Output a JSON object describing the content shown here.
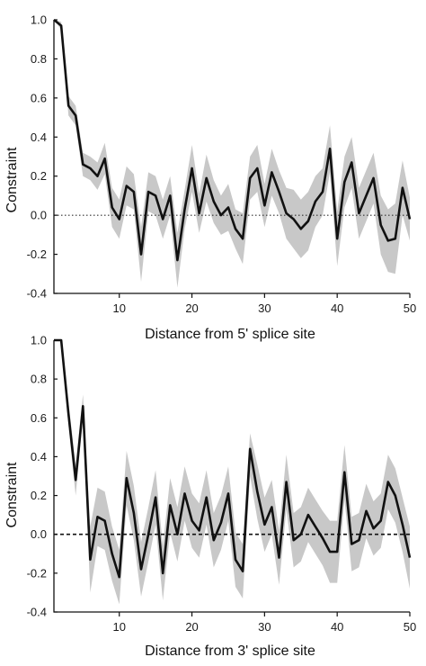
{
  "chart_data": [
    {
      "type": "line",
      "title": "",
      "xlabel": "Distance from 5' splice site",
      "ylabel": "Constraint",
      "xlim": [
        1,
        50
      ],
      "ylim": [
        -0.4,
        1.0
      ],
      "xticks": [
        10,
        20,
        30,
        40,
        50
      ],
      "yticks": [
        -0.4,
        -0.2,
        0.0,
        0.2,
        0.4,
        0.6,
        0.8,
        1.0
      ],
      "ytick_labels": [
        "-0.4",
        "-0.2",
        "0.0",
        "0.2",
        "0.4",
        "0.6",
        "0.8",
        "1.0"
      ],
      "reference_line": {
        "y": 0.0,
        "style": "dotted"
      },
      "grid": false,
      "series": [
        {
          "x": [
            1,
            2,
            3,
            4,
            5,
            6,
            7,
            8,
            9,
            10,
            11,
            12,
            13,
            14,
            15,
            16,
            17,
            18,
            19,
            20,
            21,
            22,
            23,
            24,
            25,
            26,
            27,
            28,
            29,
            30,
            31,
            32,
            33,
            34,
            35,
            36,
            37,
            38,
            39,
            40,
            41,
            42,
            43,
            44,
            45,
            46,
            47,
            48,
            49,
            50
          ],
          "values": [
            1.0,
            0.97,
            0.56,
            0.51,
            0.26,
            0.24,
            0.2,
            0.29,
            0.04,
            -0.02,
            0.15,
            0.12,
            -0.2,
            0.12,
            0.1,
            -0.02,
            0.1,
            -0.23,
            0.03,
            0.24,
            0.01,
            0.19,
            0.07,
            0.0,
            0.04,
            -0.07,
            -0.12,
            0.19,
            0.24,
            0.05,
            0.22,
            0.12,
            0.01,
            -0.02,
            -0.07,
            -0.03,
            0.07,
            0.12,
            0.34,
            -0.12,
            0.17,
            0.27,
            0.01,
            0.1,
            0.19,
            -0.05,
            -0.13,
            -0.12,
            0.14,
            -0.02
          ],
          "lower": [
            1.0,
            0.95,
            0.51,
            0.46,
            0.2,
            0.18,
            0.13,
            0.21,
            -0.06,
            -0.12,
            0.05,
            0.03,
            -0.34,
            0.02,
            0.0,
            -0.12,
            0.0,
            -0.37,
            -0.07,
            0.12,
            -0.09,
            0.07,
            -0.04,
            -0.1,
            -0.08,
            -0.17,
            -0.25,
            0.08,
            0.12,
            -0.06,
            0.1,
            0.01,
            -0.12,
            -0.17,
            -0.22,
            -0.18,
            -0.06,
            0.0,
            0.22,
            -0.26,
            0.04,
            0.14,
            -0.12,
            -0.03,
            0.06,
            -0.2,
            -0.29,
            -0.3,
            0.0,
            -0.13
          ],
          "upper": [
            1.0,
            0.99,
            0.61,
            0.56,
            0.32,
            0.3,
            0.27,
            0.37,
            0.14,
            0.08,
            0.25,
            0.21,
            -0.06,
            0.22,
            0.2,
            0.08,
            0.2,
            -0.09,
            0.13,
            0.36,
            0.11,
            0.31,
            0.18,
            0.1,
            0.16,
            0.03,
            0.01,
            0.3,
            0.36,
            0.16,
            0.34,
            0.23,
            0.14,
            0.13,
            0.08,
            0.12,
            0.2,
            0.24,
            0.46,
            0.02,
            0.3,
            0.4,
            0.14,
            0.23,
            0.32,
            0.1,
            0.03,
            0.06,
            0.28,
            0.09
          ]
        }
      ],
      "colors": {
        "line": "#111111",
        "band": "#c8c8c8",
        "reference": "#333333"
      }
    },
    {
      "type": "line",
      "title": "",
      "xlabel": "Distance from 3' splice site",
      "ylabel": "Constraint",
      "xlim": [
        1,
        50
      ],
      "ylim": [
        -0.4,
        1.0
      ],
      "xticks": [
        10,
        20,
        30,
        40,
        50
      ],
      "yticks": [
        -0.4,
        -0.2,
        0.0,
        0.2,
        0.4,
        0.6,
        0.8,
        1.0
      ],
      "ytick_labels": [
        "-0.4",
        "-0.2",
        "0.0",
        "0.2",
        "0.4",
        "0.6",
        "0.8",
        "1.0"
      ],
      "reference_line": {
        "y": 0.0,
        "style": "dashed"
      },
      "grid": false,
      "series": [
        {
          "x": [
            1,
            2,
            3,
            4,
            5,
            6,
            7,
            8,
            9,
            10,
            11,
            12,
            13,
            14,
            15,
            16,
            17,
            18,
            19,
            20,
            21,
            22,
            23,
            24,
            25,
            26,
            27,
            28,
            29,
            30,
            31,
            32,
            33,
            34,
            35,
            36,
            37,
            38,
            39,
            40,
            41,
            42,
            43,
            44,
            45,
            46,
            47,
            48,
            49,
            50
          ],
          "values": [
            1.0,
            1.0,
            0.62,
            0.28,
            0.66,
            -0.13,
            0.09,
            0.07,
            -0.1,
            -0.22,
            0.29,
            0.11,
            -0.18,
            0.0,
            0.19,
            -0.2,
            0.15,
            0.0,
            0.21,
            0.07,
            0.02,
            0.19,
            -0.03,
            0.06,
            0.21,
            -0.13,
            -0.19,
            0.44,
            0.22,
            0.05,
            0.14,
            -0.12,
            0.27,
            -0.03,
            0.0,
            0.1,
            0.04,
            -0.02,
            -0.09,
            -0.09,
            0.32,
            -0.05,
            -0.03,
            0.12,
            0.03,
            0.07,
            0.27,
            0.2,
            0.05,
            -0.12
          ],
          "lower": [
            1.0,
            1.0,
            0.56,
            0.2,
            0.6,
            -0.3,
            -0.06,
            -0.08,
            -0.24,
            -0.36,
            0.15,
            -0.03,
            -0.32,
            -0.14,
            0.05,
            -0.34,
            0.01,
            -0.14,
            0.07,
            -0.07,
            -0.12,
            0.05,
            -0.17,
            -0.08,
            0.07,
            -0.27,
            -0.33,
            0.3,
            0.08,
            -0.09,
            0.0,
            -0.26,
            0.13,
            -0.17,
            -0.14,
            -0.04,
            -0.1,
            -0.16,
            -0.25,
            -0.25,
            0.18,
            -0.19,
            -0.17,
            -0.02,
            -0.11,
            -0.07,
            0.13,
            0.06,
            -0.09,
            -0.28
          ],
          "upper": [
            1.0,
            1.0,
            0.68,
            0.36,
            0.72,
            0.04,
            0.24,
            0.22,
            0.04,
            -0.08,
            0.43,
            0.25,
            -0.04,
            0.14,
            0.33,
            -0.06,
            0.29,
            0.14,
            0.35,
            0.21,
            0.16,
            0.33,
            0.11,
            0.2,
            0.35,
            0.01,
            -0.05,
            0.52,
            0.36,
            0.19,
            0.28,
            0.02,
            0.41,
            0.11,
            0.14,
            0.24,
            0.18,
            0.12,
            0.07,
            0.07,
            0.46,
            0.09,
            0.11,
            0.26,
            0.17,
            0.21,
            0.41,
            0.34,
            0.19,
            0.04
          ]
        }
      ],
      "colors": {
        "line": "#111111",
        "band": "#c8c8c8",
        "reference": "#111111"
      }
    }
  ]
}
